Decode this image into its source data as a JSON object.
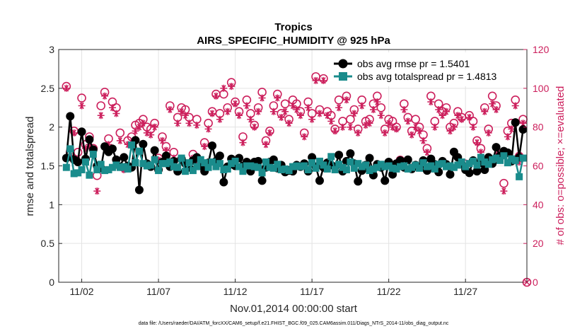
{
  "chart_data": {
    "type": "line",
    "title": "Tropics",
    "subtitle": "AIRS_SPECIFIC_HUMIDITY @ 925 hPa",
    "xlabel": "Nov.01,2014 00:00:00 start",
    "ylabel": "rmse and totalspread",
    "ylabel_right": "# of obs: o=possible; ×=evaluated",
    "footer": "data file: /Users/raeder/DAI/ATM_forcXX/CAM6_setup/f.e21.FHIST_BGC.f09_025.CAM6assim.011/Diags_NTrS_2014-11/obs_diag_output.nc",
    "xlim": [
      0.5,
      31.0
    ],
    "ylim": [
      0,
      3
    ],
    "ylim_right": [
      0,
      120
    ],
    "x_ticks": [
      2,
      7,
      12,
      17,
      22,
      27
    ],
    "x_tick_labels": [
      "11/02",
      "11/07",
      "11/12",
      "11/17",
      "11/22",
      "11/27"
    ],
    "y_ticks": [
      0,
      0.5,
      1,
      1.5,
      2,
      2.5,
      3
    ],
    "y_tick_labels": [
      "0",
      "0.5",
      "1",
      "1.5",
      "2",
      "2.5",
      "3"
    ],
    "y_right_ticks": [
      0,
      20,
      40,
      60,
      80,
      100,
      120
    ],
    "y_right_tick_labels": [
      "0",
      "20",
      "40",
      "60",
      "80",
      "100",
      "120"
    ],
    "grid": true,
    "legend": "top-right",
    "x": [
      1.0,
      1.25,
      1.5,
      1.75,
      2.0,
      2.25,
      2.5,
      2.75,
      3.0,
      3.25,
      3.5,
      3.75,
      4.0,
      4.25,
      4.5,
      4.75,
      5.0,
      5.25,
      5.5,
      5.75,
      6.0,
      6.25,
      6.5,
      6.75,
      7.0,
      7.25,
      7.5,
      7.75,
      8.0,
      8.25,
      8.5,
      8.75,
      9.0,
      9.25,
      9.5,
      9.75,
      10.0,
      10.25,
      10.5,
      10.75,
      11.0,
      11.25,
      11.5,
      11.75,
      12.0,
      12.25,
      12.5,
      12.75,
      13.0,
      13.25,
      13.5,
      13.75,
      14.0,
      14.25,
      14.5,
      14.75,
      15.0,
      15.25,
      15.5,
      15.75,
      16.0,
      16.25,
      16.5,
      16.75,
      17.0,
      17.25,
      17.5,
      17.75,
      18.0,
      18.25,
      18.5,
      18.75,
      19.0,
      19.25,
      19.5,
      19.75,
      20.0,
      20.25,
      20.5,
      20.75,
      21.0,
      21.25,
      21.5,
      21.75,
      22.0,
      22.25,
      22.5,
      22.75,
      23.0,
      23.25,
      23.5,
      23.75,
      24.0,
      24.25,
      24.5,
      24.75,
      25.0,
      25.25,
      25.5,
      25.75,
      26.0,
      26.25,
      26.5,
      26.75,
      27.0,
      27.25,
      27.5,
      27.75,
      28.0,
      28.25,
      28.5,
      28.75,
      29.0,
      29.25,
      29.5,
      29.75,
      30.0,
      30.25,
      30.5,
      30.75
    ],
    "series": [
      {
        "name": "obs avg rmse pr = 1.5401",
        "axis": "left",
        "color": "#000000",
        "values": [
          1.6,
          2.14,
          1.58,
          1.55,
          1.94,
          1.59,
          1.84,
          1.71,
          1.5,
          1.47,
          1.75,
          1.68,
          1.72,
          1.58,
          1.49,
          1.61,
          1.5,
          1.48,
          1.83,
          1.19,
          1.78,
          1.53,
          1.49,
          1.7,
          1.45,
          1.55,
          1.63,
          1.49,
          1.56,
          1.43,
          1.59,
          1.53,
          1.48,
          1.57,
          1.61,
          1.5,
          1.43,
          1.54,
          1.76,
          1.56,
          1.63,
          1.29,
          1.49,
          1.59,
          1.5,
          1.6,
          1.5,
          1.55,
          1.43,
          1.55,
          1.56,
          1.31,
          1.48,
          1.55,
          1.58,
          1.47,
          1.51,
          1.42,
          1.44,
          1.43,
          1.51,
          1.49,
          1.53,
          1.43,
          1.61,
          1.49,
          1.31,
          1.48,
          1.54,
          1.51,
          1.49,
          1.64,
          1.43,
          1.56,
          1.66,
          1.53,
          1.3,
          1.44,
          1.51,
          1.6,
          1.38,
          1.52,
          1.48,
          1.31,
          1.55,
          1.39,
          1.53,
          1.57,
          1.48,
          1.58,
          1.46,
          1.51,
          1.49,
          1.57,
          1.44,
          1.59,
          1.52,
          1.42,
          1.56,
          1.52,
          1.39,
          1.68,
          1.61,
          1.52,
          1.45,
          1.41,
          1.57,
          1.43,
          1.54,
          1.45,
          1.61,
          1.53,
          1.74,
          1.63,
          1.69,
          1.67,
          1.56,
          2.06,
          1.61,
          1.97
        ]
      },
      {
        "name": "obs avg totalspread pr = 1.4813",
        "axis": "left",
        "color": "#1a8c8c",
        "values": [
          1.48,
          1.72,
          1.4,
          1.41,
          1.45,
          1.55,
          1.38,
          1.65,
          1.45,
          1.52,
          1.44,
          1.45,
          1.48,
          1.51,
          1.48,
          1.49,
          1.46,
          1.77,
          1.54,
          1.69,
          1.53,
          1.5,
          1.51,
          1.58,
          1.44,
          1.53,
          1.53,
          1.55,
          1.49,
          1.48,
          1.6,
          1.43,
          1.54,
          1.44,
          1.49,
          1.58,
          1.54,
          1.48,
          1.55,
          1.49,
          1.53,
          1.45,
          1.46,
          1.53,
          1.56,
          1.49,
          1.43,
          1.5,
          1.5,
          1.49,
          1.48,
          1.41,
          1.55,
          1.48,
          1.47,
          1.52,
          1.45,
          1.46,
          1.44,
          1.49,
          1.5,
          1.49,
          1.5,
          1.45,
          1.54,
          1.47,
          1.56,
          1.51,
          1.46,
          1.62,
          1.45,
          1.52,
          1.48,
          1.45,
          1.55,
          1.47,
          1.53,
          1.49,
          1.51,
          1.44,
          1.46,
          1.48,
          1.52,
          1.49,
          1.5,
          1.47,
          1.46,
          1.49,
          1.5,
          1.46,
          1.48,
          1.51,
          1.47,
          1.54,
          1.49,
          1.5,
          1.46,
          1.52,
          1.53,
          1.49,
          1.5,
          1.48,
          1.51,
          1.55,
          1.49,
          1.53,
          1.56,
          1.51,
          1.61,
          1.55,
          1.52,
          1.58,
          1.6,
          1.57,
          1.63,
          1.54,
          1.59,
          1.57,
          1.36,
          1.6
        ]
      },
      {
        "name": "possible",
        "axis": "right",
        "color": "#cc1f5c",
        "marker": "circle",
        "values": [
          101,
          67,
          78,
          67,
          95,
          71,
          75,
          69,
          55,
          91,
          98,
          74,
          93,
          90,
          77,
          59,
          73,
          75,
          81,
          82,
          84,
          80,
          79,
          82,
          64,
          75,
          70,
          91,
          67,
          85,
          90,
          89,
          85,
          66,
          84,
          61,
          72,
          82,
          88,
          97,
          87,
          97,
          90,
          103,
          93,
          88,
          75,
          94,
          87,
          81,
          90,
          98,
          73,
          78,
          91,
          97,
          87,
          92,
          84,
          94,
          92,
          88,
          77,
          93,
          87,
          106,
          89,
          105,
          88,
          86,
          79,
          94,
          83,
          96,
          84,
          89,
          79,
          94,
          83,
          84,
          92,
          96,
          90,
          79,
          84,
          83,
          80,
          63,
          92,
          85,
          78,
          84,
          80,
          76,
          69,
          96,
          83,
          92,
          88,
          90,
          80,
          82,
          88,
          85,
          61,
          86,
          83,
          73,
          69,
          90,
          79,
          96,
          91,
          66,
          51,
          78,
          82,
          94,
          65,
          84
        ]
      },
      {
        "name": "evaluated",
        "axis": "right",
        "color": "#cc1f5c",
        "marker": "asterisk",
        "values": [
          100,
          65,
          77,
          63,
          91,
          69,
          71,
          68,
          47,
          86,
          96,
          71,
          90,
          87,
          73,
          58,
          71,
          72,
          78,
          80,
          82,
          77,
          76,
          80,
          63,
          73,
          68,
          89,
          64,
          82,
          88,
          86,
          82,
          64,
          81,
          60,
          70,
          79,
          87,
          96,
          84,
          100,
          88,
          101,
          92,
          86,
          72,
          91,
          84,
          80,
          88,
          95,
          71,
          77,
          88,
          95,
          85,
          88,
          82,
          91,
          89,
          86,
          75,
          90,
          84,
          104,
          87,
          104,
          86,
          83,
          78,
          90,
          80,
          94,
          80,
          87,
          77,
          91,
          81,
          82,
          89,
          93,
          86,
          77,
          82,
          80,
          79,
          60,
          89,
          83,
          76,
          80,
          78,
          73,
          67,
          93,
          80,
          89,
          86,
          88,
          78,
          80,
          86,
          84,
          58,
          85,
          80,
          72,
          67,
          88,
          77,
          92,
          89,
          63,
          47,
          75,
          79,
          91,
          62,
          82
        ]
      }
    ]
  }
}
